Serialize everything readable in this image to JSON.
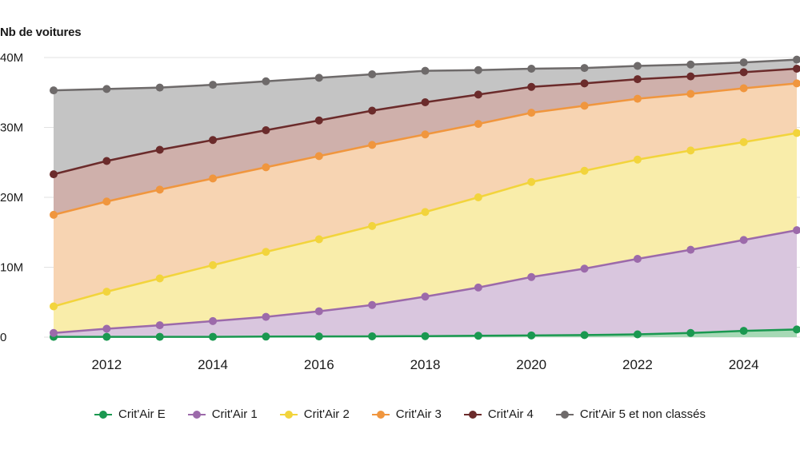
{
  "chart_data": {
    "type": "area",
    "stacked": true,
    "ylabel": "Nb de voitures",
    "ylim": [
      0,
      40000000
    ],
    "yticks": [
      {
        "value": 0,
        "label": "0"
      },
      {
        "value": 10000000,
        "label": "10M"
      },
      {
        "value": 20000000,
        "label": "20M"
      },
      {
        "value": 30000000,
        "label": "30M"
      },
      {
        "value": 40000000,
        "label": "40M"
      }
    ],
    "xlim": [
      2011,
      2025
    ],
    "xticks": [
      2012,
      2014,
      2016,
      2018,
      2020,
      2022,
      2024
    ],
    "x": [
      2011,
      2012,
      2013,
      2014,
      2015,
      2016,
      2017,
      2018,
      2019,
      2020,
      2021,
      2022,
      2023,
      2024,
      2025
    ],
    "series": [
      {
        "name": "Crit'Air E",
        "line_color": "#1a9850",
        "fill_color": "#a6d9b5",
        "cumulative": [
          0.05,
          0.05,
          0.05,
          0.05,
          0.08,
          0.1,
          0.12,
          0.15,
          0.2,
          0.25,
          0.3,
          0.4,
          0.6,
          0.9,
          1.1
        ]
      },
      {
        "name": "Crit'Air 1",
        "line_color": "#9c6aaa",
        "fill_color": "#d9c6de",
        "cumulative": [
          0.6,
          1.2,
          1.7,
          2.3,
          2.9,
          3.7,
          4.6,
          5.8,
          7.1,
          8.6,
          9.8,
          11.2,
          12.5,
          13.9,
          15.3
        ]
      },
      {
        "name": "Crit'Air 2",
        "line_color": "#f2d43c",
        "fill_color": "#f9edaa",
        "cumulative": [
          4.4,
          6.5,
          8.4,
          10.3,
          12.2,
          14.0,
          15.9,
          17.9,
          20.0,
          22.2,
          23.8,
          25.4,
          26.7,
          27.9,
          29.2
        ]
      },
      {
        "name": "Crit'Air 3",
        "line_color": "#f0963e",
        "fill_color": "#f7d4b2",
        "cumulative": [
          17.5,
          19.4,
          21.1,
          22.7,
          24.3,
          25.9,
          27.5,
          29.0,
          30.5,
          32.1,
          33.1,
          34.1,
          34.8,
          35.6,
          36.3
        ]
      },
      {
        "name": "Crit'Air 4",
        "line_color": "#6b2b2b",
        "fill_color": "#cfb0ab",
        "cumulative": [
          23.3,
          25.2,
          26.8,
          28.2,
          29.6,
          31.0,
          32.4,
          33.6,
          34.7,
          35.8,
          36.3,
          36.9,
          37.3,
          37.9,
          38.4
        ]
      },
      {
        "name": "Crit'Air 5 et non classés",
        "line_color": "#6e6a6a",
        "fill_color": "#c4c4c4",
        "cumulative": [
          35.3,
          35.5,
          35.7,
          36.1,
          36.6,
          37.1,
          37.6,
          38.1,
          38.2,
          38.4,
          38.5,
          38.8,
          39.0,
          39.3,
          39.7
        ]
      }
    ],
    "value_unit": "millions of cars (cumulative stacked values)",
    "legend_position": "bottom"
  }
}
